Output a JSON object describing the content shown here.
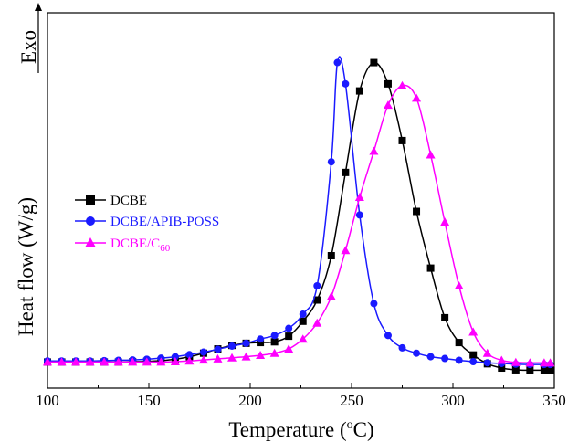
{
  "chart_data": {
    "type": "line",
    "xlabel": "Temperature (",
    "xlabel_sup": "o",
    "xlabel_end": "C)",
    "ylabel": "Heat flow  (W/g)",
    "exo_label": "Exo",
    "xlim": [
      100,
      350
    ],
    "ylim": [
      0,
      1
    ],
    "y_units": "relative (no tick labels shown)",
    "xticks": [
      100,
      150,
      200,
      250,
      300,
      350
    ],
    "xtick_labels": [
      "100",
      "150",
      "200",
      "250",
      "300",
      "350"
    ],
    "grid": false,
    "legend_placement": "center-left",
    "series": [
      {
        "name": "DCBE",
        "color": "#000000",
        "marker": "square",
        "x": [
          100,
          107,
          114,
          121,
          128,
          135,
          142,
          149,
          156,
          163,
          170,
          177,
          184,
          191,
          198,
          205,
          212,
          219,
          226,
          233,
          240,
          247,
          254,
          261,
          268,
          275,
          282,
          289,
          296,
          303,
          310,
          317,
          324,
          331,
          338,
          345,
          348
        ],
        "y": [
          0.035,
          0.035,
          0.035,
          0.035,
          0.035,
          0.035,
          0.036,
          0.037,
          0.039,
          0.043,
          0.05,
          0.06,
          0.072,
          0.082,
          0.088,
          0.09,
          0.092,
          0.108,
          0.15,
          0.21,
          0.335,
          0.57,
          0.8,
          0.88,
          0.82,
          0.66,
          0.46,
          0.3,
          0.16,
          0.09,
          0.055,
          0.03,
          0.018,
          0.013,
          0.012,
          0.012,
          0.012
        ],
        "legend_label": "DCBE"
      },
      {
        "name": "DCBE/APIB-POSS",
        "color": "#1a1aff",
        "marker": "circle",
        "x": [
          100,
          107,
          114,
          121,
          128,
          135,
          142,
          149,
          156,
          163,
          170,
          177,
          184,
          191,
          198,
          205,
          212,
          219,
          226,
          233,
          240,
          243,
          247,
          254,
          261,
          268,
          275,
          282,
          289,
          296,
          303,
          310,
          317,
          324,
          331,
          338,
          345,
          348
        ],
        "y": [
          0.038,
          0.038,
          0.038,
          0.038,
          0.039,
          0.04,
          0.041,
          0.043,
          0.046,
          0.05,
          0.056,
          0.063,
          0.071,
          0.08,
          0.088,
          0.1,
          0.11,
          0.13,
          0.17,
          0.25,
          0.6,
          0.88,
          0.82,
          0.45,
          0.2,
          0.11,
          0.075,
          0.06,
          0.05,
          0.045,
          0.04,
          0.036,
          0.033,
          0.031,
          0.029,
          0.028,
          0.028,
          0.028
        ],
        "legend_label": "DCBE/APIB-POSS"
      },
      {
        "name": "DCBE/C60",
        "color": "#ff00ff",
        "marker": "triangle",
        "x": [
          100,
          107,
          114,
          121,
          128,
          135,
          142,
          149,
          156,
          163,
          170,
          177,
          184,
          191,
          198,
          205,
          212,
          219,
          226,
          233,
          240,
          247,
          254,
          261,
          268,
          275,
          282,
          289,
          296,
          303,
          310,
          317,
          324,
          331,
          338,
          345,
          348
        ],
        "y": [
          0.035,
          0.035,
          0.035,
          0.035,
          0.035,
          0.035,
          0.035,
          0.035,
          0.035,
          0.036,
          0.038,
          0.041,
          0.044,
          0.047,
          0.05,
          0.054,
          0.06,
          0.072,
          0.1,
          0.145,
          0.22,
          0.35,
          0.5,
          0.63,
          0.76,
          0.815,
          0.78,
          0.62,
          0.43,
          0.25,
          0.12,
          0.06,
          0.04,
          0.034,
          0.033,
          0.033,
          0.033
        ],
        "legend_label_main": "DCBE/C",
        "legend_label_sub": "60"
      }
    ]
  }
}
